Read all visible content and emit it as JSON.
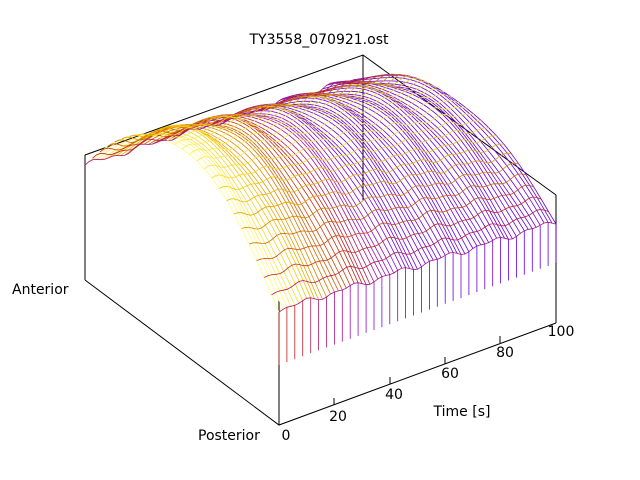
{
  "chart_data": {
    "type": "surface",
    "title": "TY3558_070921.ost",
    "xlabel": "Time [s]",
    "x_ticks": [
      "0",
      "20",
      "40",
      "60",
      "80",
      "100"
    ],
    "xlim": [
      0,
      100
    ],
    "position_labels": [
      "Anterior",
      "Posterior"
    ],
    "grid": false,
    "legend": "none",
    "colormap": [
      "#6a00e0",
      "#9a10c0",
      "#c0201a",
      "#d06a00",
      "#f0c000",
      "#ffff80"
    ],
    "surface_description": "Mesh surface: dome-shaped profile across Anterior–Posterior; peak near early time (≈0–30 s) at warm yellow colors, decaying toward 100 s in purple."
  }
}
